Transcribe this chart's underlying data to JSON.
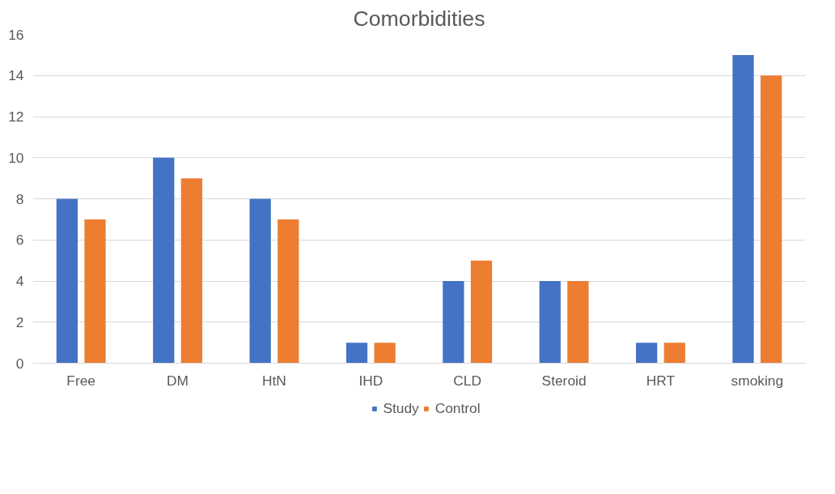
{
  "chart_data": {
    "type": "bar",
    "title": "Comorbidities",
    "categories": [
      "Free",
      "DM",
      "HtN",
      "IHD",
      "CLD",
      "Steroid",
      "HRT",
      "smoking"
    ],
    "series": [
      {
        "name": "Study",
        "color": "#4472c4",
        "values": [
          8,
          10,
          8,
          1,
          4,
          4,
          1,
          15
        ]
      },
      {
        "name": "Control",
        "color": "#ed7d31",
        "values": [
          7,
          9,
          7,
          1,
          5,
          4,
          1,
          14
        ]
      }
    ],
    "ylim": [
      0,
      16
    ],
    "yticks": [
      0,
      2,
      4,
      6,
      8,
      10,
      12,
      14,
      16
    ],
    "grid": "y",
    "legend": "bottom"
  }
}
